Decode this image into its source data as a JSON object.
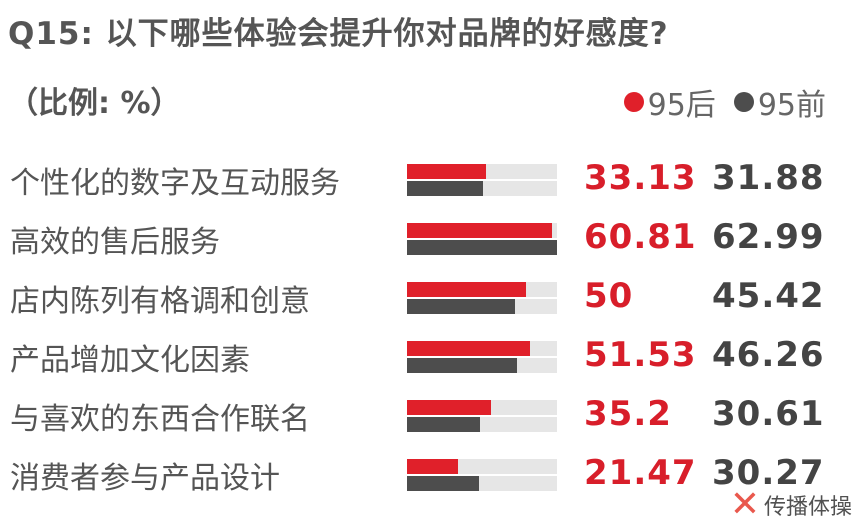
{
  "title": "Q15: 以下哪些体验会提升你对品牌的好感度?",
  "unit_label": "（比例: %）",
  "legend": [
    {
      "label": "95后",
      "color": "#e0202a"
    },
    {
      "label": "95前",
      "color": "#4d4d4d"
    }
  ],
  "colors": {
    "after": "#e0202a",
    "before": "#4d4d4d",
    "track": "#e6e6e6"
  },
  "chart_data": {
    "type": "bar",
    "title": "Q15: 以下哪些体验会提升你对品牌的好感度?",
    "ylabel": "（比例: %）",
    "ylim": [
      0,
      63
    ],
    "legend_position": "top-right",
    "categories": [
      "个性化的数字及互动服务",
      "高效的售后服务",
      "店内陈列有格调和创意",
      "产品增加文化因素",
      "与喜欢的东西合作联名",
      "消费者参与产品设计"
    ],
    "series": [
      {
        "name": "95后",
        "values": [
          33.13,
          60.81,
          50,
          51.53,
          35.2,
          21.47
        ],
        "labels": [
          "33.13",
          "60.81",
          "50",
          "51.53",
          "35.2",
          "21.47"
        ]
      },
      {
        "name": "95前",
        "values": [
          31.88,
          62.99,
          45.42,
          46.26,
          30.61,
          30.27
        ],
        "labels": [
          "31.88",
          "62.99",
          "45.42",
          "46.26",
          "30.61",
          "30.27"
        ]
      }
    ]
  },
  "watermark": {
    "logo": "㋡",
    "text": "传播体操"
  }
}
